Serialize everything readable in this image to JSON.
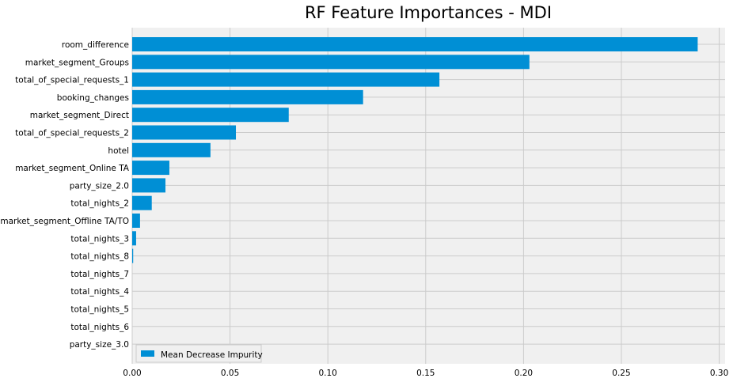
{
  "chart_data": {
    "type": "bar",
    "orientation": "horizontal",
    "title": "RF Feature Importances - MDI",
    "xlabel": "",
    "ylabel": "",
    "categories": [
      "room_difference",
      "market_segment_Groups",
      "total_of_special_requests_1",
      "booking_changes",
      "market_segment_Direct",
      "total_of_special_requests_2",
      "hotel",
      "market_segment_Online TA",
      "party_size_2.0",
      "total_nights_2",
      "market_segment_Offline TA/TO",
      "total_nights_3",
      "total_nights_8",
      "total_nights_7",
      "total_nights_4",
      "total_nights_5",
      "total_nights_6",
      "party_size_3.0"
    ],
    "series": [
      {
        "name": "Mean Decrease Impurity",
        "color": "#008fd5",
        "values": [
          0.289,
          0.203,
          0.157,
          0.118,
          0.08,
          0.053,
          0.04,
          0.019,
          0.017,
          0.01,
          0.004,
          0.002,
          0.0005,
          0.0,
          0.0,
          0.0,
          0.0,
          0.0
        ]
      }
    ],
    "xlim": [
      0,
      0.303
    ],
    "xticks": [
      "0.00",
      "0.05",
      "0.10",
      "0.15",
      "0.20",
      "0.25",
      "0.30"
    ],
    "grid": true,
    "legend_position": "lower-left",
    "style": {
      "plot_background": "#f0f0f0",
      "grid_color": "#cbcbcb",
      "bar_color": "#008fd5"
    }
  }
}
